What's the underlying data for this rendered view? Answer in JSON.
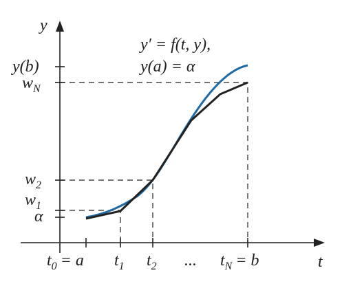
{
  "axes": {
    "y_label": "y",
    "t_label": "t"
  },
  "y_labels": {
    "y_b": "y(b)",
    "w_N": {
      "base": "w",
      "sub": "N"
    },
    "w_2": {
      "base": "w",
      "sub": "2"
    },
    "w_1": {
      "base": "w",
      "sub": "1"
    },
    "alpha": "α"
  },
  "t_labels": {
    "t_0": {
      "base": "t",
      "sub": "0",
      "rest": "= a"
    },
    "t_1": {
      "base": "t",
      "sub": "1"
    },
    "t_2": {
      "base": "t",
      "sub": "2"
    },
    "ellipsis": "...",
    "t_N": {
      "base": "t",
      "sub": "N",
      "rest": "= b"
    }
  },
  "equation": [
    "y′ = f(t, y),",
    "y(a) = α"
  ]
}
